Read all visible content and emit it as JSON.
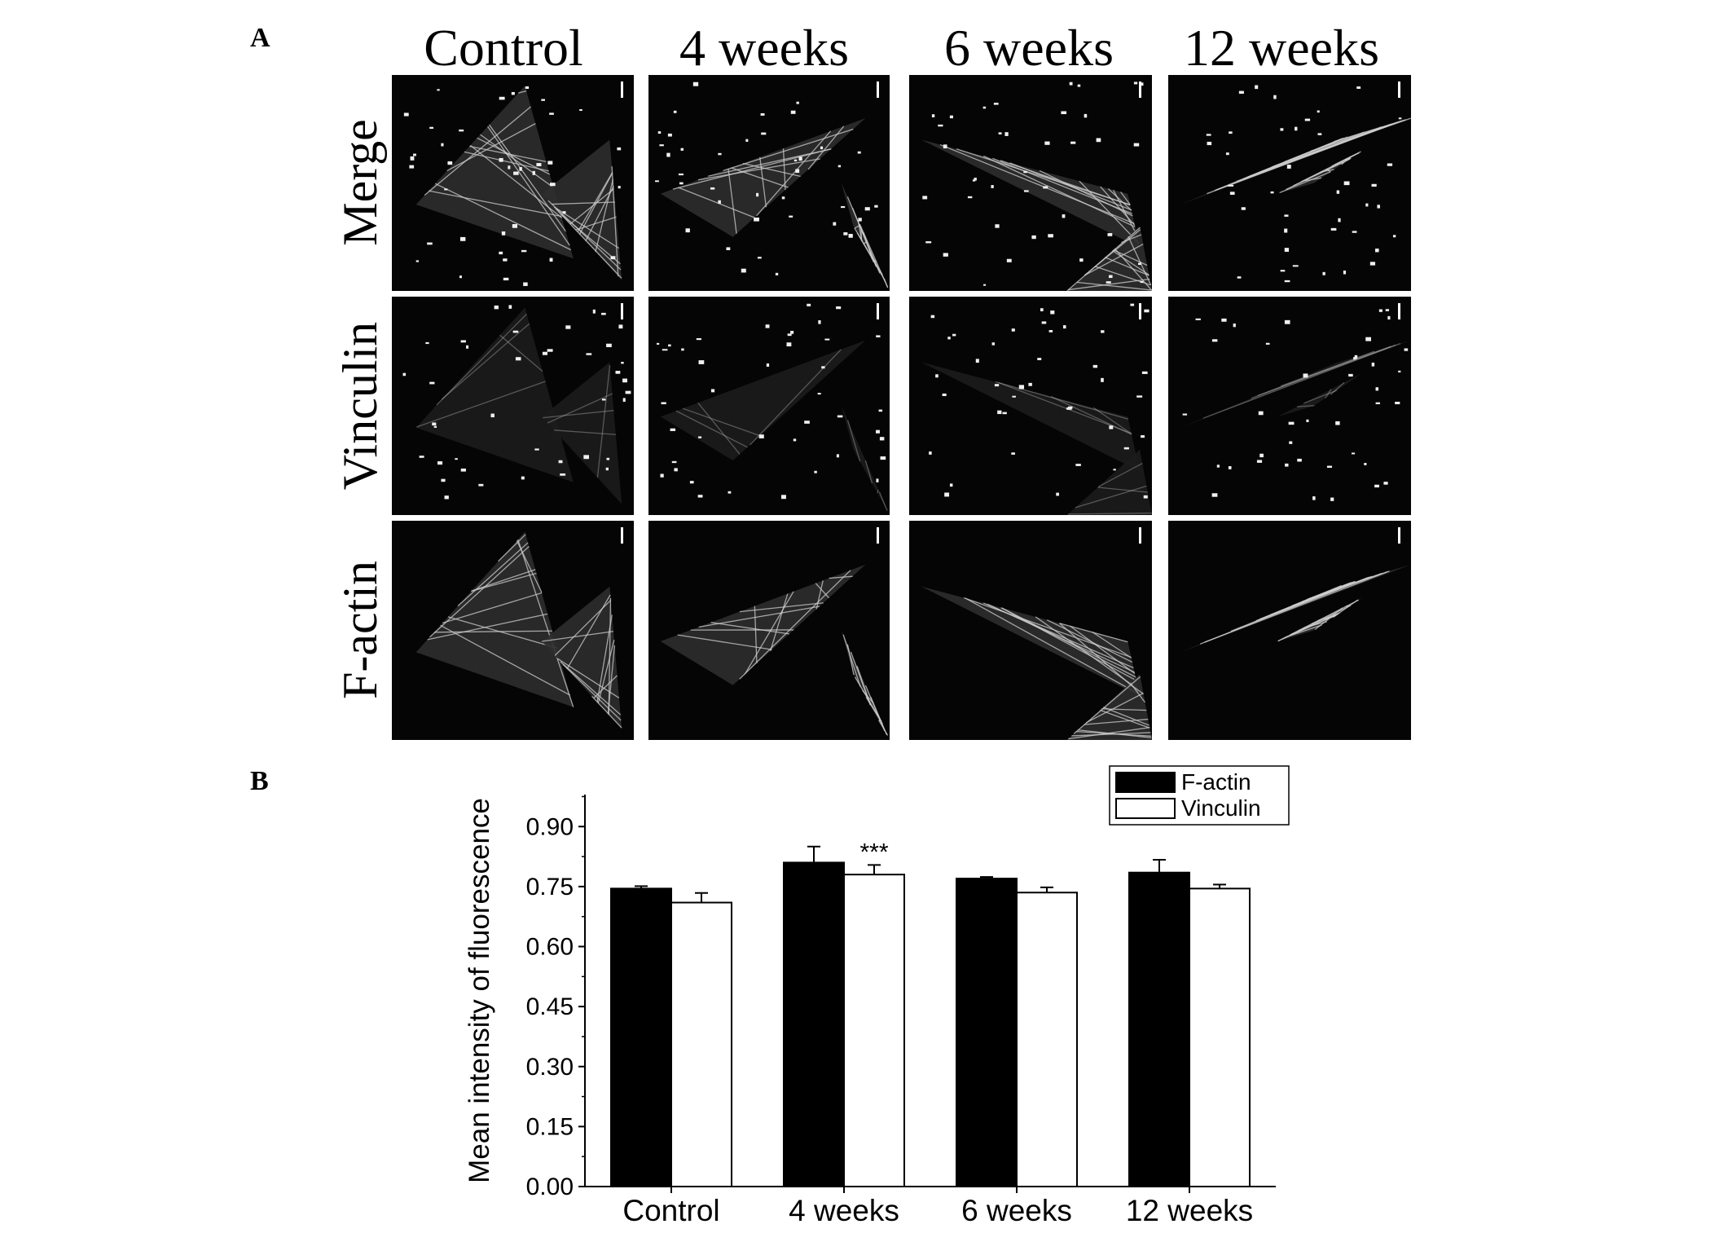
{
  "panel_a": {
    "label": "A",
    "columns": [
      "Control",
      "4 weeks",
      "6 weeks",
      "12 weeks"
    ],
    "rows": [
      "Merge",
      "Vinculin",
      "F-actin"
    ]
  },
  "panel_b": {
    "label": "B"
  },
  "chart_data": {
    "type": "bar",
    "title": "",
    "xlabel": "",
    "ylabel": "Mean intensity of fluorescence",
    "categories": [
      "Control",
      "4 weeks",
      "6 weeks",
      "12 weeks"
    ],
    "ylim": [
      0,
      0.98
    ],
    "yticks": [
      "0.00",
      "0.15",
      "0.30",
      "0.45",
      "0.60",
      "0.75",
      "0.90"
    ],
    "legend_position": "top-right",
    "series": [
      {
        "name": "F-actin",
        "color": "#000000",
        "values": [
          0.745,
          0.81,
          0.77,
          0.785
        ],
        "errors": [
          0.006,
          0.04,
          0.004,
          0.032
        ]
      },
      {
        "name": "Vinculin",
        "color": "#ffffff",
        "values": [
          0.71,
          0.78,
          0.735,
          0.745
        ],
        "errors": [
          0.024,
          0.024,
          0.013,
          0.01
        ]
      }
    ],
    "annotations": [
      {
        "category": "4 weeks",
        "series": "Vinculin",
        "text": "***"
      }
    ]
  }
}
